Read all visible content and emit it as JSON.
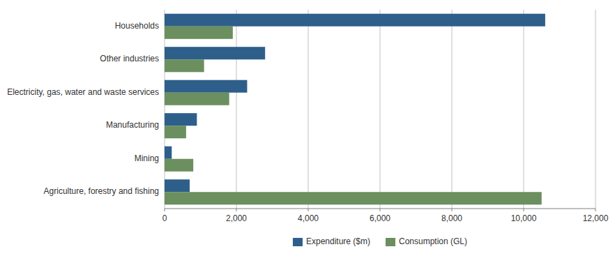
{
  "chart_data": {
    "type": "bar",
    "orientation": "horizontal",
    "categories": [
      "Agriculture, forestry and fishing",
      "Mining",
      "Manufacturing",
      "Electricity, gas, water and waste services",
      "Other industries",
      "Households"
    ],
    "series": [
      {
        "name": "Expenditure ($m)",
        "color": "#2e5f8a",
        "values": [
          700,
          200,
          900,
          2300,
          2800,
          10600
        ]
      },
      {
        "name": "Consumption (GL)",
        "color": "#6b8f5e",
        "values": [
          10500,
          800,
          600,
          1800,
          1100,
          1900
        ]
      }
    ],
    "xlim": [
      0,
      12000
    ],
    "xticks": [
      0,
      {
        "value": 2000,
        "label": "2,000"
      },
      {
        "value": 4000,
        "label": "4,000"
      },
      {
        "value": 6000,
        "label": "6,000"
      },
      {
        "value": 8000,
        "label": "8,000"
      },
      {
        "value": 10000,
        "label": "10,000"
      },
      {
        "value": 12000,
        "label": "12,000"
      }
    ],
    "grid": true,
    "legend": "bottom"
  }
}
